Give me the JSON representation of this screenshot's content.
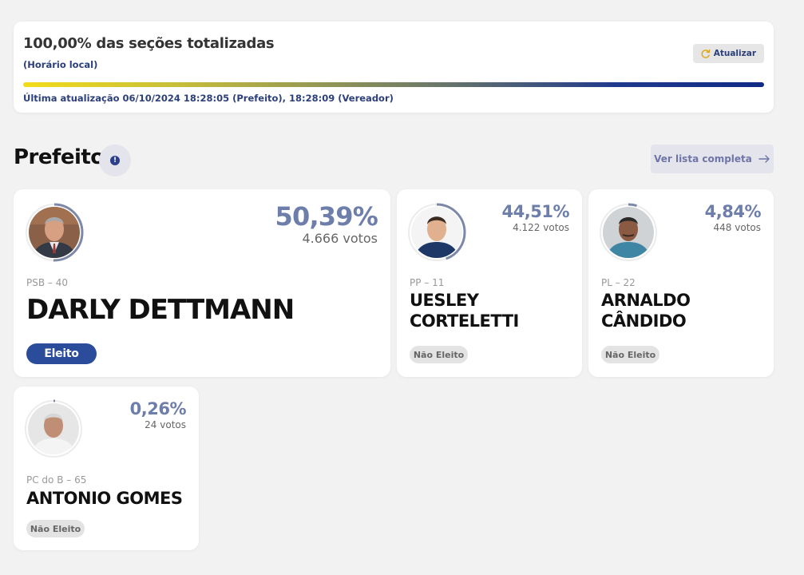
{
  "status": {
    "title": "100,00% das seções totalizadas",
    "subtitle": "(Horário local)",
    "refresh_label": "Atualizar",
    "refresh_icon": "refresh-icon",
    "progress_percent": 100,
    "last_update": "Última atualização 06/10/2024 18:28:05 (Prefeito), 18:28:09 (Vereador)"
  },
  "section": {
    "title": "Prefeito",
    "info_icon": "info-icon",
    "list_button_label": "Ver lista completa",
    "list_button_icon": "arrow-right-icon"
  },
  "colors": {
    "accent": "#2b3f7a",
    "elected_badge": "#2b4c9b",
    "percent_text": "#6d7eaa",
    "not_elected_badge": "#e3e3e3"
  },
  "candidates": [
    {
      "party": "PSB – 40",
      "name": "DARLY DETTMANN",
      "percent": "50,39%",
      "percent_value": 50.39,
      "votes": "4.666 votos",
      "status": "Eleito"
    },
    {
      "party": "PP – 11",
      "name": "UESLEY CORTELETTI",
      "percent": "44,51%",
      "percent_value": 44.51,
      "votes": "4.122 votos",
      "status": "Não Eleito"
    },
    {
      "party": "PL – 22",
      "name": "ARNALDO CÂNDIDO",
      "percent": "4,84%",
      "percent_value": 4.84,
      "votes": "448 votos",
      "status": "Não Eleito"
    },
    {
      "party": "PC do B – 65",
      "name": "ANTONIO GOMES",
      "percent": "0,26%",
      "percent_value": 0.26,
      "votes": "24 votos",
      "status": "Não Eleito"
    }
  ]
}
